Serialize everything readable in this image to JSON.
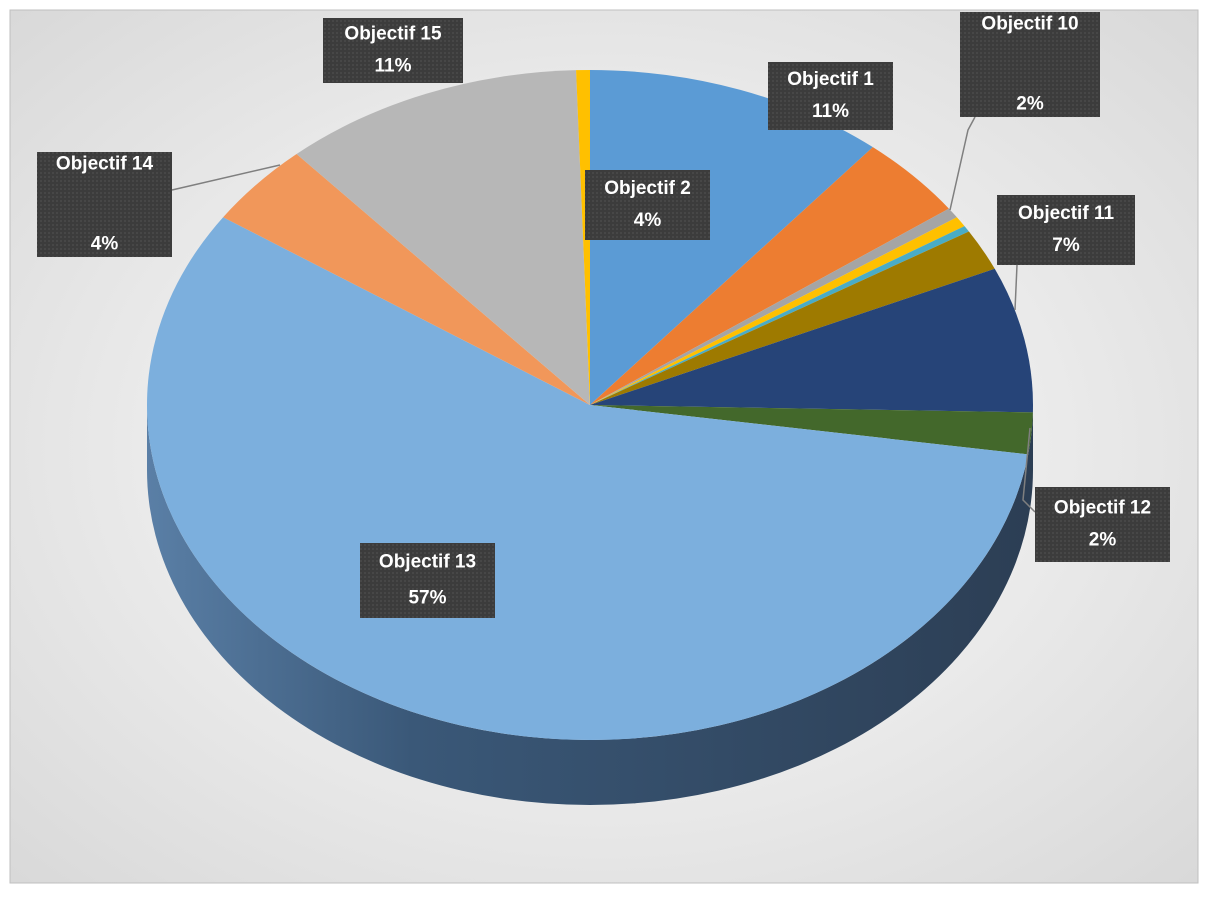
{
  "chart_data": {
    "type": "pie",
    "categories": [
      "Objectif 1",
      "Objectif 2",
      null,
      null,
      null,
      "Objectif 10",
      "Objectif 11",
      "Objectif 12",
      "Objectif 13",
      "Objectif 14",
      "Objectif 15",
      null
    ],
    "values": [
      11,
      4,
      0.5,
      0.5,
      0.3,
      2,
      7,
      2,
      57,
      4,
      11,
      0.5
    ],
    "value_labels": [
      "11%",
      "4%",
      null,
      null,
      null,
      "2%",
      "7%",
      "2%",
      "57%",
      "4%",
      "11%",
      null
    ],
    "colors": [
      "#5b9bd5",
      "#ed7d31",
      "#a5a5a5",
      "#ffc000",
      "#4aacc6",
      "#9e7a00",
      "#264478",
      "#43682b",
      "#7cafdd",
      "#f1975a",
      "#b7b7b7",
      "#ffc000"
    ]
  }
}
